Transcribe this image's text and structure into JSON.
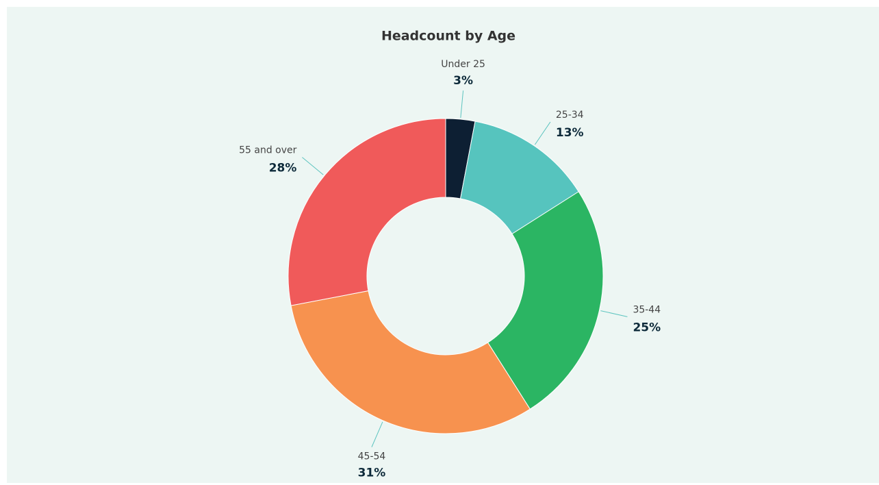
{
  "chart_data": {
    "type": "donut",
    "title": "Headcount by Age",
    "categories": [
      "Under 25",
      "25-34",
      "35-44",
      "45-54",
      "55 and over"
    ],
    "values": [
      3,
      13,
      25,
      31,
      28
    ],
    "value_labels": [
      "3%",
      "13%",
      "25%",
      "31%",
      "28%"
    ],
    "colors": [
      "#0d1f33",
      "#56c4be",
      "#2bb563",
      "#f7924f",
      "#f05a5a"
    ]
  }
}
